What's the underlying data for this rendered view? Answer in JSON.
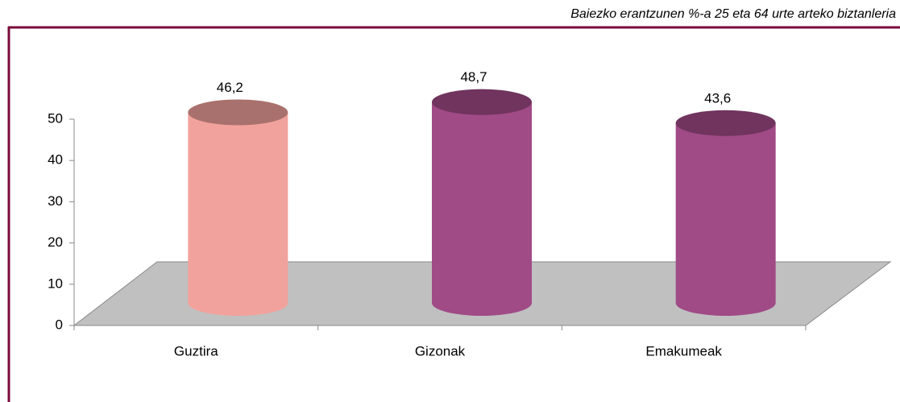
{
  "chart_data": {
    "type": "bar3d",
    "title": "Baiezko erantzunen %-a 25 eta 64 urte arteko biztanleria",
    "categories": [
      "Guztira",
      "Gizonak",
      "Emakumeak"
    ],
    "values": [
      46.2,
      48.7,
      43.6
    ],
    "value_labels": [
      "46,2",
      "48,7",
      "43,6"
    ],
    "colors": [
      "#f2a29c",
      "#a04a86",
      "#a04a86"
    ],
    "ylim": [
      0,
      50
    ],
    "yticks": [
      0,
      10,
      20,
      30,
      40,
      50
    ],
    "grid": false
  }
}
